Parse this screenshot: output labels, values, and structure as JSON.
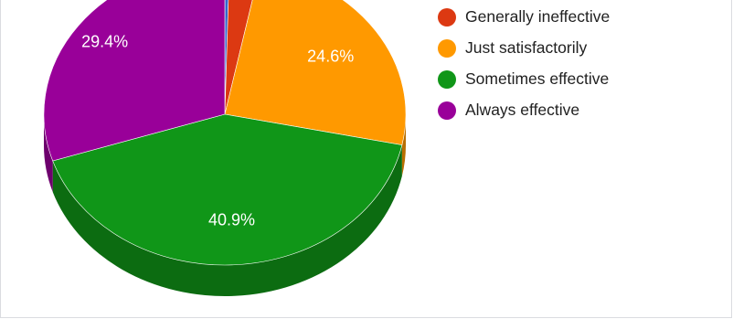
{
  "chart_data": {
    "type": "pie",
    "style": "3d",
    "title": "",
    "slices": [
      {
        "label": "",
        "value": 0.4,
        "color": "#3366cc",
        "data_label": ""
      },
      {
        "label": "Generally ineffective",
        "value": 2.7,
        "color": "#dc3912",
        "data_label": ""
      },
      {
        "label": "Just satisfactorily",
        "value": 24.6,
        "color": "#ff9900",
        "data_label": "24.6%"
      },
      {
        "label": "Sometimes effective",
        "value": 40.9,
        "color": "#109618",
        "data_label": "40.9%"
      },
      {
        "label": "Always effective",
        "value": 29.4,
        "color": "#990099",
        "data_label": "29.4%"
      }
    ],
    "legend": {
      "position": "right",
      "items": [
        {
          "label": "Generally ineffective",
          "color": "#dc3912"
        },
        {
          "label": "Just satisfactorily",
          "color": "#ff9900"
        },
        {
          "label": "Sometimes effective",
          "color": "#109618"
        },
        {
          "label": "Always effective",
          "color": "#990099"
        }
      ]
    }
  }
}
